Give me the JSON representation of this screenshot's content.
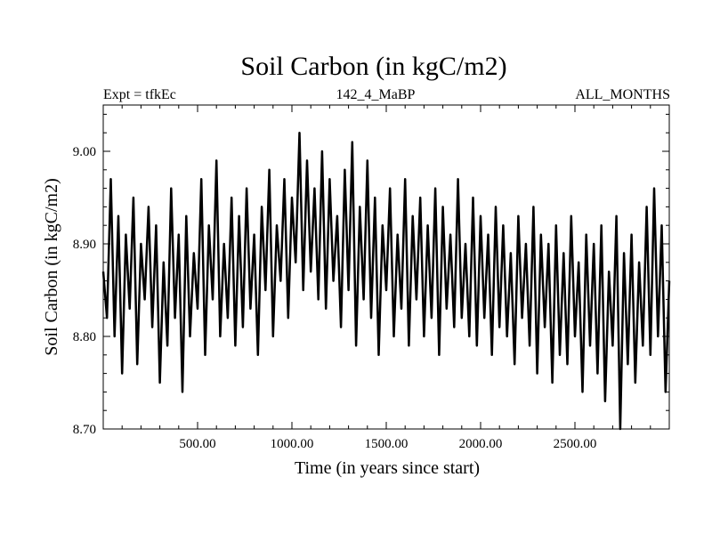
{
  "header": {
    "title": "Soil Carbon (in kgC/m2)",
    "left_label": "Expt = tfkEc",
    "center_label": "142_4_MaBP",
    "right_label": "ALL_MONTHS"
  },
  "chart_data": {
    "type": "line",
    "title": "Soil Carbon (in kgC/m2)",
    "xlabel": "Time (in years since start)",
    "ylabel": "Soil Carbon (in kgC/m2)",
    "xlim": [
      0,
      3000
    ],
    "ylim": [
      8.7,
      9.05
    ],
    "x_ticks": [
      500,
      1000,
      1500,
      2000,
      2500
    ],
    "x_tick_labels": [
      "500.00",
      "1000.00",
      "1500.00",
      "2000.00",
      "2500.00"
    ],
    "y_ticks": [
      8.7,
      8.8,
      8.9,
      9.0
    ],
    "y_tick_labels": [
      "8.70",
      "8.80",
      "8.90",
      "9.00"
    ],
    "grid": false,
    "line_color": "#000000",
    "series": [
      {
        "x": [
          0,
          20,
          40,
          60,
          80,
          100,
          120,
          140,
          160,
          180,
          200,
          220,
          240,
          260,
          280,
          300,
          320,
          340,
          360,
          380,
          400,
          420,
          440,
          460,
          480,
          500,
          520,
          540,
          560,
          580,
          600,
          620,
          640,
          660,
          680,
          700,
          720,
          740,
          760,
          780,
          800,
          820,
          840,
          860,
          880,
          900,
          920,
          940,
          960,
          980,
          1000,
          1020,
          1040,
          1060,
          1080,
          1100,
          1120,
          1140,
          1160,
          1180,
          1200,
          1220,
          1240,
          1260,
          1280,
          1300,
          1320,
          1340,
          1360,
          1380,
          1400,
          1420,
          1440,
          1460,
          1480,
          1500,
          1520,
          1540,
          1560,
          1580,
          1600,
          1620,
          1640,
          1660,
          1680,
          1700,
          1720,
          1740,
          1760,
          1780,
          1800,
          1820,
          1840,
          1860,
          1880,
          1900,
          1920,
          1940,
          1960,
          1980,
          2000,
          2020,
          2040,
          2060,
          2080,
          2100,
          2120,
          2140,
          2160,
          2180,
          2200,
          2220,
          2240,
          2260,
          2280,
          2300,
          2320,
          2340,
          2360,
          2380,
          2400,
          2420,
          2440,
          2460,
          2480,
          2500,
          2520,
          2540,
          2560,
          2580,
          2600,
          2620,
          2640,
          2660,
          2680,
          2700,
          2720,
          2740,
          2760,
          2780,
          2800,
          2820,
          2840,
          2860,
          2880,
          2900,
          2920,
          2940,
          2960,
          2980,
          3000
        ],
        "values": [
          8.87,
          8.82,
          8.97,
          8.8,
          8.93,
          8.76,
          8.91,
          8.83,
          8.95,
          8.77,
          8.9,
          8.84,
          8.94,
          8.81,
          8.92,
          8.75,
          8.88,
          8.79,
          8.96,
          8.82,
          8.91,
          8.74,
          8.93,
          8.8,
          8.89,
          8.83,
          8.97,
          8.78,
          8.92,
          8.84,
          8.99,
          8.8,
          8.9,
          8.82,
          8.95,
          8.79,
          8.93,
          8.81,
          8.96,
          8.83,
          8.91,
          8.78,
          8.94,
          8.85,
          8.98,
          8.8,
          8.92,
          8.86,
          8.97,
          8.82,
          8.95,
          8.88,
          9.02,
          8.85,
          8.99,
          8.87,
          8.96,
          8.84,
          9.0,
          8.83,
          8.97,
          8.86,
          8.93,
          8.81,
          8.98,
          8.85,
          9.01,
          8.79,
          8.94,
          8.84,
          8.99,
          8.82,
          8.95,
          8.78,
          8.92,
          8.85,
          8.96,
          8.8,
          8.91,
          8.83,
          8.97,
          8.79,
          8.93,
          8.84,
          8.95,
          8.8,
          8.92,
          8.82,
          8.96,
          8.78,
          8.94,
          8.83,
          8.91,
          8.81,
          8.97,
          8.82,
          8.9,
          8.8,
          8.95,
          8.79,
          8.93,
          8.82,
          8.91,
          8.78,
          8.94,
          8.81,
          8.92,
          8.8,
          8.89,
          8.77,
          8.93,
          8.82,
          8.9,
          8.79,
          8.94,
          8.76,
          8.91,
          8.81,
          8.9,
          8.75,
          8.92,
          8.78,
          8.89,
          8.77,
          8.93,
          8.8,
          8.88,
          8.74,
          8.91,
          8.79,
          8.9,
          8.76,
          8.92,
          8.73,
          8.87,
          8.79,
          8.93,
          8.7,
          8.89,
          8.77,
          8.91,
          8.75,
          8.88,
          8.79,
          8.94,
          8.78,
          8.96,
          8.8,
          8.92,
          8.74,
          8.86
        ]
      }
    ]
  }
}
